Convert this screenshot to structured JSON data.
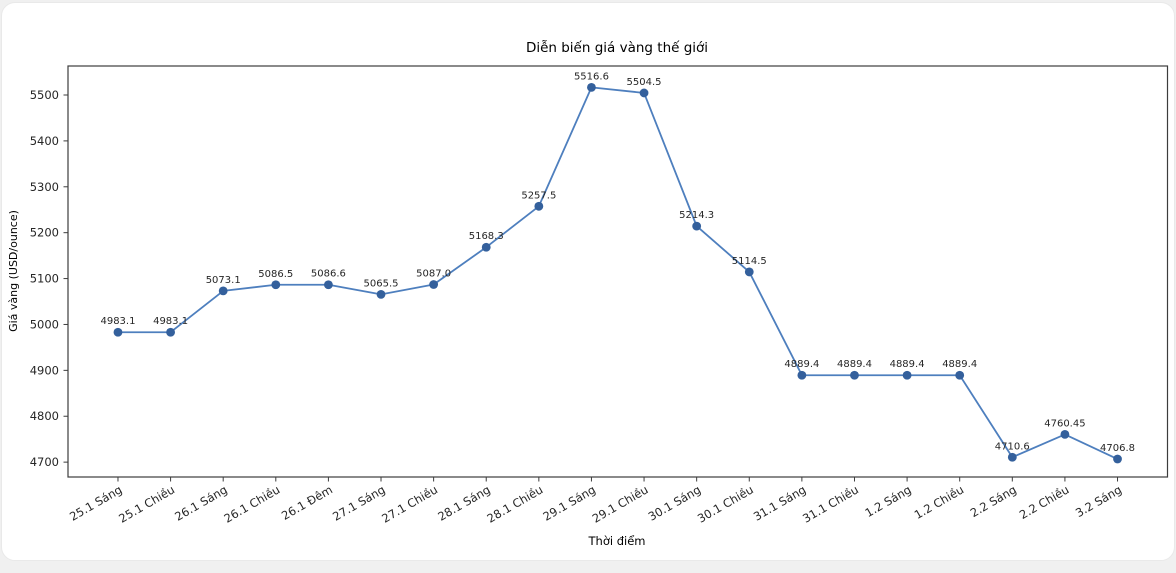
{
  "chart_data": {
    "type": "line",
    "title": "Diễn biến giá vàng thế giới",
    "xlabel": "Thời điểm",
    "ylabel": "Giá vàng (USD/ounce)",
    "categories": [
      "25.1 Sáng",
      "25.1 Chiều",
      "26.1 Sáng",
      "26.1 Chiều",
      "26.1 Đêm",
      "27.1 Sáng",
      "27.1 Chiều",
      "28.1 Sáng",
      "28.1 Chiều",
      "29.1 Sáng",
      "29.1 Chiều",
      "30.1 Sáng",
      "30.1 Chiều",
      "31.1 Sáng",
      "31.1 Chiều",
      "1.2 Sáng",
      "1.2 Chiều",
      "2.2 Sáng",
      "2.2 Chiều",
      "3.2 Sáng"
    ],
    "values": [
      4983.1,
      4983.1,
      5073.1,
      5086.5,
      5086.6,
      5065.5,
      5087.0,
      5168.3,
      5257.5,
      5516.6,
      5504.5,
      5214.3,
      5114.5,
      4889.4,
      4889.4,
      4889.4,
      4889.4,
      4710.6,
      4760.45,
      4706.8
    ],
    "point_labels": [
      "4983.1",
      "4983.1",
      "5073.1",
      "5086.5",
      "5086.6",
      "5065.5",
      "5087.0",
      "5168.3",
      "5257.5",
      "5516.6",
      "5504.5",
      "5214.3",
      "5114.5",
      "4889.4",
      "4889.4",
      "4889.4",
      "4889.4",
      "4710.6",
      "4760.45",
      "4706.8"
    ],
    "yticks": [
      4700,
      4800,
      4900,
      5000,
      5100,
      5200,
      5300,
      5400,
      5500
    ],
    "ylim": [
      4667.6,
      5563.2
    ],
    "xlim": [
      -0.95,
      19.95
    ],
    "grid": false,
    "legend_position": "none",
    "x_tick_rotation_deg": 30,
    "colors": {
      "line": "#4e7fbe",
      "marker": "#34609c",
      "text": "#262626",
      "spine": "#3c3c3c",
      "background": "#ffffff"
    }
  }
}
